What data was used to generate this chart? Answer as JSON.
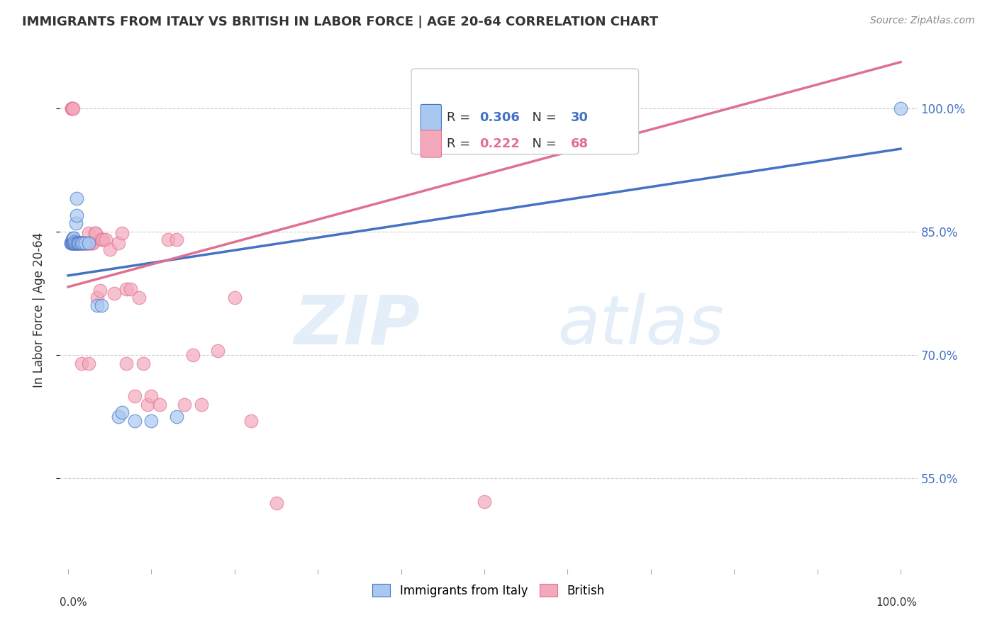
{
  "title": "IMMIGRANTS FROM ITALY VS BRITISH IN LABOR FORCE | AGE 20-64 CORRELATION CHART",
  "source": "Source: ZipAtlas.com",
  "ylabel": "In Labor Force | Age 20-64",
  "legend1_label": "Immigrants from Italy",
  "legend2_label": "British",
  "R_italy": 0.306,
  "N_italy": 30,
  "R_british": 0.222,
  "N_british": 68,
  "color_italy": "#a8c8f0",
  "color_british": "#f4a8bc",
  "color_italy_line": "#4472c4",
  "color_british_line": "#e07090",
  "color_ytick": "#4472c4",
  "color_text": "#333333",
  "color_source": "#888888",
  "color_grid": "#cccccc",
  "background_color": "#ffffff",
  "italy_x": [
    0.003,
    0.004,
    0.005,
    0.005,
    0.006,
    0.006,
    0.007,
    0.007,
    0.008,
    0.008,
    0.009,
    0.009,
    0.01,
    0.01,
    0.011,
    0.012,
    0.013,
    0.014,
    0.016,
    0.018,
    0.02,
    0.025,
    0.035,
    0.04,
    0.06,
    0.065,
    0.08,
    0.1,
    0.13,
    1.0
  ],
  "italy_y": [
    0.836,
    0.836,
    0.84,
    0.836,
    0.842,
    0.836,
    0.842,
    0.836,
    0.836,
    0.838,
    0.86,
    0.836,
    0.87,
    0.89,
    0.836,
    0.836,
    0.836,
    0.836,
    0.836,
    0.836,
    0.836,
    0.836,
    0.76,
    0.76,
    0.625,
    0.63,
    0.62,
    0.62,
    0.625,
    1.0
  ],
  "british_x": [
    0.003,
    0.004,
    0.004,
    0.005,
    0.006,
    0.006,
    0.007,
    0.007,
    0.008,
    0.008,
    0.009,
    0.009,
    0.01,
    0.01,
    0.011,
    0.011,
    0.012,
    0.012,
    0.013,
    0.014,
    0.015,
    0.015,
    0.016,
    0.017,
    0.018,
    0.019,
    0.02,
    0.021,
    0.022,
    0.023,
    0.024,
    0.025,
    0.026,
    0.027,
    0.028,
    0.03,
    0.032,
    0.033,
    0.035,
    0.038,
    0.04,
    0.042,
    0.045,
    0.05,
    0.055,
    0.06,
    0.065,
    0.07,
    0.075,
    0.08,
    0.085,
    0.09,
    0.095,
    0.1,
    0.11,
    0.12,
    0.13,
    0.14,
    0.15,
    0.16,
    0.18,
    0.2,
    0.22,
    0.25,
    0.016,
    0.025,
    0.5,
    0.07
  ],
  "british_y": [
    0.836,
    1.0,
    1.0,
    1.0,
    1.0,
    0.836,
    0.836,
    0.836,
    0.836,
    0.836,
    0.836,
    0.836,
    0.836,
    0.836,
    0.836,
    0.836,
    0.836,
    0.836,
    0.836,
    0.836,
    0.836,
    0.836,
    0.836,
    0.836,
    0.836,
    0.836,
    0.836,
    0.836,
    0.836,
    0.836,
    0.836,
    0.848,
    0.836,
    0.836,
    0.836,
    0.836,
    0.848,
    0.848,
    0.77,
    0.778,
    0.84,
    0.84,
    0.84,
    0.828,
    0.775,
    0.836,
    0.848,
    0.78,
    0.78,
    0.65,
    0.77,
    0.69,
    0.64,
    0.65,
    0.64,
    0.84,
    0.84,
    0.64,
    0.7,
    0.64,
    0.705,
    0.77,
    0.62,
    0.52,
    0.69,
    0.69,
    0.522,
    0.69
  ],
  "ylim_min": 0.44,
  "ylim_max": 1.07,
  "xlim_min": -0.01,
  "xlim_max": 1.02,
  "ytick_vals": [
    0.55,
    0.7,
    0.85,
    1.0
  ],
  "ytick_labels": [
    "55.0%",
    "70.0%",
    "85.0%",
    "100.0%"
  ],
  "xtick_vals": [
    0.0,
    0.1,
    0.2,
    0.3,
    0.4,
    0.5,
    0.6,
    0.7,
    0.8,
    0.9,
    1.0
  ],
  "marker_size": 180,
  "line_width": 2.5
}
